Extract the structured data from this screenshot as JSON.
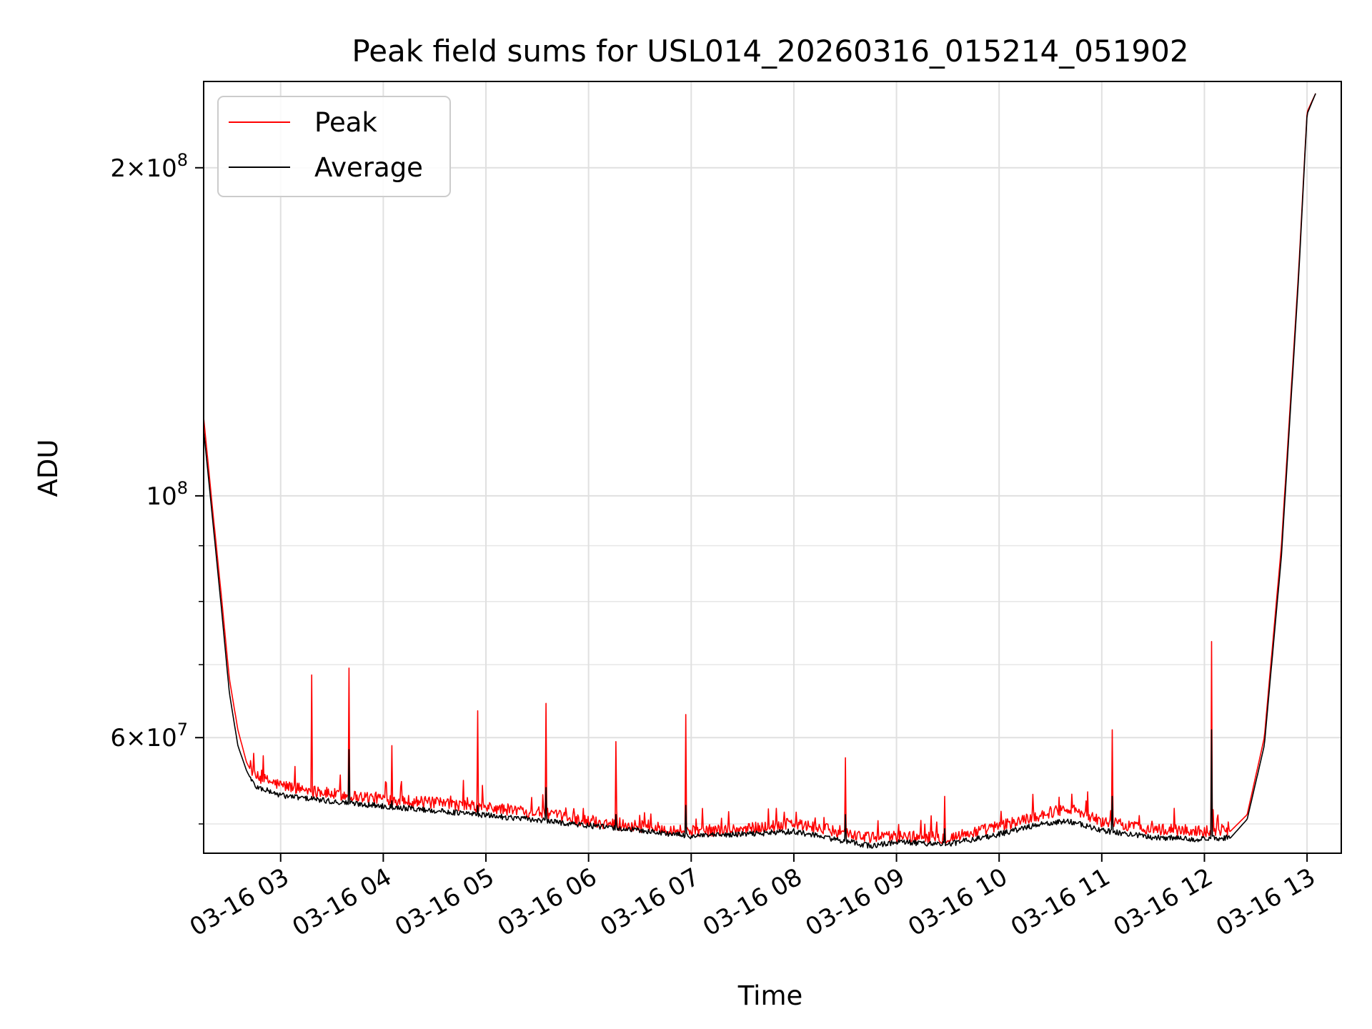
{
  "chart_data": {
    "type": "line",
    "title": "Peak field sums for USL014_20260316_015214_051902",
    "xlabel": "Time",
    "ylabel": "ADU",
    "y_scale": "log",
    "grid": true,
    "legend_position": "top-left",
    "xlim": [
      "2026-03-16 02:15",
      "2026-03-16 13:20"
    ],
    "ylim": [
      47000000,
      240000000
    ],
    "x_ticks": [
      "03-16 03",
      "03-16 04",
      "03-16 05",
      "03-16 06",
      "03-16 07",
      "03-16 08",
      "03-16 09",
      "03-16 10",
      "03-16 11",
      "03-16 12",
      "03-16 13"
    ],
    "x_tick_times": [
      "2026-03-16 03:00",
      "2026-03-16 04:00",
      "2026-03-16 05:00",
      "2026-03-16 06:00",
      "2026-03-16 07:00",
      "2026-03-16 08:00",
      "2026-03-16 09:00",
      "2026-03-16 10:00",
      "2026-03-16 11:00",
      "2026-03-16 12:00",
      "2026-03-16 13:00"
    ],
    "y_ticks": [
      {
        "value": 200000000,
        "mantissa": "2",
        "exp": "8"
      },
      {
        "value": 100000000,
        "mantissa": "",
        "exp": "8"
      },
      {
        "value": 60000000,
        "mantissa": "6",
        "exp": "7"
      }
    ],
    "y_minor_ticks": [
      50000000,
      70000000,
      80000000,
      90000000
    ],
    "series": [
      {
        "name": "Peak",
        "color": "#ff0000",
        "x": [
          "2026-03-16 02:15",
          "2026-03-16 02:20",
          "2026-03-16 02:25",
          "2026-03-16 02:30",
          "2026-03-16 02:35",
          "2026-03-16 02:40",
          "2026-03-16 02:45",
          "2026-03-16 03:00",
          "2026-03-16 03:30",
          "2026-03-16 04:00",
          "2026-03-16 04:30",
          "2026-03-16 05:00",
          "2026-03-16 05:30",
          "2026-03-16 06:00",
          "2026-03-16 06:30",
          "2026-03-16 07:00",
          "2026-03-16 07:30",
          "2026-03-16 08:00",
          "2026-03-16 08:30",
          "2026-03-16 08:45",
          "2026-03-16 09:00",
          "2026-03-16 09:30",
          "2026-03-16 10:00",
          "2026-03-16 10:20",
          "2026-03-16 10:40",
          "2026-03-16 11:00",
          "2026-03-16 11:30",
          "2026-03-16 12:00",
          "2026-03-16 12:15",
          "2026-03-16 12:25",
          "2026-03-16 12:35",
          "2026-03-16 12:45",
          "2026-03-16 12:55",
          "2026-03-16 13:00",
          "2026-03-16 13:05"
        ],
        "values": [
          118000000,
          98000000,
          82000000,
          68000000,
          61000000,
          57000000,
          55000000,
          54000000,
          53000000,
          52500000,
          52000000,
          51500000,
          51000000,
          50000000,
          49500000,
          49000000,
          49200000,
          49800000,
          48800000,
          48300000,
          48500000,
          48300000,
          49500000,
          50500000,
          51500000,
          50000000,
          49200000,
          49000000,
          49200000,
          51000000,
          60000000,
          90000000,
          160000000,
          225000000,
          234000000
        ]
      },
      {
        "name": "Average",
        "color": "#000000",
        "x": [
          "2026-03-16 02:15",
          "2026-03-16 02:20",
          "2026-03-16 02:25",
          "2026-03-16 02:30",
          "2026-03-16 02:35",
          "2026-03-16 02:40",
          "2026-03-16 02:45",
          "2026-03-16 03:00",
          "2026-03-16 03:30",
          "2026-03-16 04:00",
          "2026-03-16 04:30",
          "2026-03-16 05:00",
          "2026-03-16 05:30",
          "2026-03-16 06:00",
          "2026-03-16 06:30",
          "2026-03-16 07:00",
          "2026-03-16 07:30",
          "2026-03-16 08:00",
          "2026-03-16 08:30",
          "2026-03-16 08:45",
          "2026-03-16 09:00",
          "2026-03-16 09:30",
          "2026-03-16 10:00",
          "2026-03-16 10:20",
          "2026-03-16 10:40",
          "2026-03-16 11:00",
          "2026-03-16 11:30",
          "2026-03-16 12:00",
          "2026-03-16 12:15",
          "2026-03-16 12:25",
          "2026-03-16 12:35",
          "2026-03-16 12:45",
          "2026-03-16 12:55",
          "2026-03-16 13:00",
          "2026-03-16 13:05"
        ],
        "values": [
          115000000,
          96000000,
          80000000,
          66000000,
          59000000,
          56000000,
          54000000,
          53000000,
          52300000,
          51800000,
          51300000,
          50800000,
          50300000,
          49700000,
          49200000,
          48600000,
          48800000,
          49100000,
          48100000,
          47600000,
          48000000,
          47800000,
          48800000,
          49700000,
          50200000,
          49200000,
          48500000,
          48300000,
          48500000,
          50500000,
          59000000,
          88000000,
          158000000,
          224000000,
          234000000
        ]
      }
    ],
    "spikes": [
      {
        "t": "2026-03-16 03:18",
        "peak": 68500000,
        "avg": 53000000
      },
      {
        "t": "2026-03-16 03:40",
        "peak": 69500000,
        "avg": 58500000
      },
      {
        "t": "2026-03-16 04:05",
        "peak": 59000000,
        "avg": 52500000
      },
      {
        "t": "2026-03-16 04:55",
        "peak": 63500000,
        "avg": 52000000
      },
      {
        "t": "2026-03-16 05:35",
        "peak": 64500000,
        "avg": 54000000
      },
      {
        "t": "2026-03-16 06:16",
        "peak": 59500000,
        "avg": 51000000
      },
      {
        "t": "2026-03-16 06:57",
        "peak": 63000000,
        "avg": 52000000
      },
      {
        "t": "2026-03-16 08:30",
        "peak": 57500000,
        "avg": 51000000
      },
      {
        "t": "2026-03-16 09:28",
        "peak": 53000000,
        "avg": 49500000
      },
      {
        "t": "2026-03-16 11:06",
        "peak": 61000000,
        "avg": 53000000
      },
      {
        "t": "2026-03-16 12:04",
        "peak": 73500000,
        "avg": 61000000
      }
    ]
  }
}
